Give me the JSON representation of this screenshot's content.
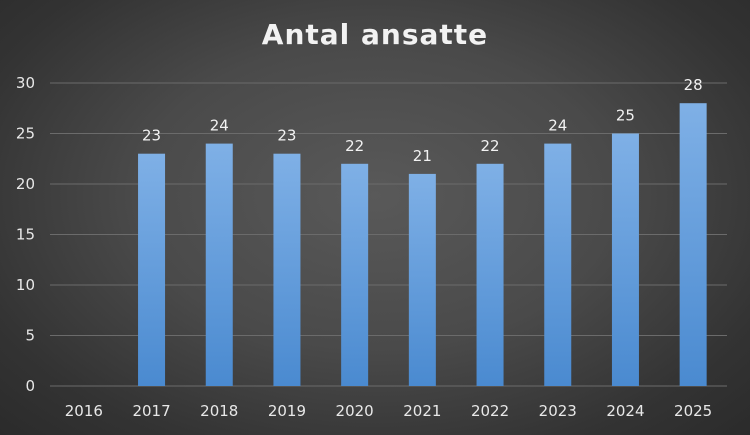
{
  "chart_data": {
    "type": "bar",
    "title": "Antal ansatte",
    "xlabel": "",
    "ylabel": "",
    "categories": [
      "2016",
      "2017",
      "2018",
      "2019",
      "2020",
      "2021",
      "2022",
      "2023",
      "2024",
      "2025"
    ],
    "values": [
      0,
      23,
      24,
      23,
      22,
      21,
      22,
      24,
      25,
      28
    ],
    "data_labels": [
      "",
      "23",
      "24",
      "23",
      "22",
      "21",
      "22",
      "24",
      "25",
      "28"
    ],
    "ylim": [
      0,
      30
    ],
    "yticks": [
      "0",
      "5",
      "10",
      "15",
      "20",
      "25",
      "30"
    ],
    "grid": true,
    "legend": "none",
    "colors": {
      "bar_top": "#7fb0e6",
      "bar_bottom": "#4a8ad0",
      "grid": "#6b6b6b",
      "text": "#e8e8e8"
    }
  }
}
